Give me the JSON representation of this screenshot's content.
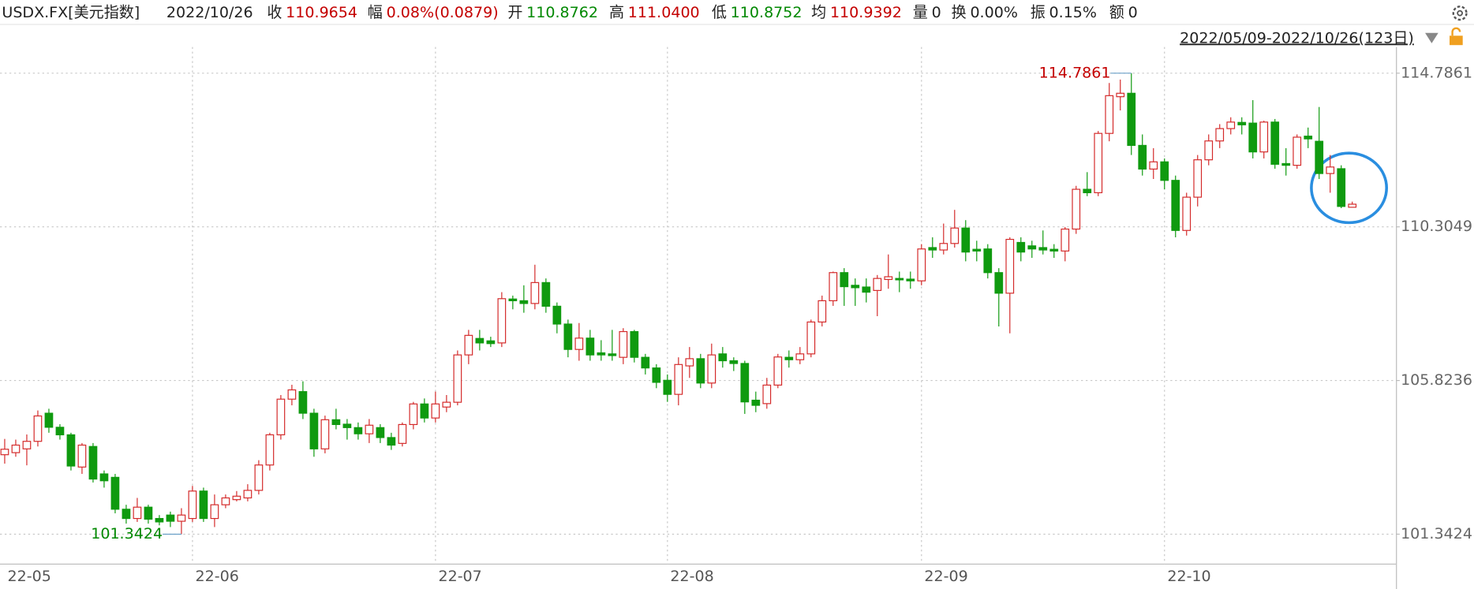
{
  "header": {
    "symbol": "USDX.FX[美元指数]",
    "date": "2022/10/26",
    "items": [
      {
        "label": "收",
        "value": "110.9654",
        "color": "#c40000"
      },
      {
        "label": "幅",
        "value": "0.08%(0.0879)",
        "color": "#c40000"
      },
      {
        "label": "开",
        "value": "110.8762",
        "color": "#008800"
      },
      {
        "label": "高",
        "value": "111.0400",
        "color": "#c40000"
      },
      {
        "label": "低",
        "value": "110.8752",
        "color": "#008800"
      },
      {
        "label": "均",
        "value": "110.9392",
        "color": "#c40000"
      },
      {
        "label": "量",
        "value": "0",
        "color": "#222222"
      },
      {
        "label": "换",
        "value": "0.00%",
        "color": "#222222"
      },
      {
        "label": "振",
        "value": "0.15%",
        "color": "#222222"
      },
      {
        "label": "额",
        "value": "0",
        "color": "#222222"
      }
    ],
    "range": "2022/05/09-2022/10/26(123日)"
  },
  "chart_data": {
    "type": "candlestick",
    "up_color": "#d42a2a",
    "down_color": "#0f9a0f",
    "annotations": {
      "max": "114.7861",
      "min": "101.3424"
    },
    "categories": [
      "22-05",
      null,
      null,
      null,
      null,
      null,
      null,
      null,
      null,
      null,
      null,
      null,
      null,
      null,
      null,
      null,
      null,
      "22-06",
      null,
      null,
      null,
      null,
      null,
      null,
      null,
      null,
      null,
      null,
      null,
      null,
      null,
      null,
      null,
      null,
      null,
      null,
      null,
      null,
      null,
      "22-07",
      null,
      null,
      null,
      null,
      null,
      null,
      null,
      null,
      null,
      null,
      null,
      null,
      null,
      null,
      null,
      null,
      null,
      null,
      null,
      null,
      "22-08",
      null,
      null,
      null,
      null,
      null,
      null,
      null,
      null,
      null,
      null,
      null,
      null,
      null,
      null,
      null,
      null,
      null,
      null,
      null,
      null,
      null,
      null,
      "22-09",
      null,
      null,
      null,
      null,
      null,
      null,
      null,
      null,
      null,
      null,
      null,
      null,
      null,
      null,
      null,
      null,
      null,
      null,
      null,
      null,
      null,
      "22-10",
      null,
      null,
      null,
      null,
      null,
      null,
      null,
      null,
      null,
      null,
      null,
      null,
      null,
      null,
      null,
      null,
      null
    ],
    "open": [
      103.66,
      103.72,
      103.83,
      104.05,
      104.87,
      104.46,
      104.24,
      103.3,
      103.9,
      103.1,
      103.0,
      102.07,
      101.8,
      102.13,
      101.8,
      101.9,
      101.72,
      101.8,
      102.6,
      101.8,
      102.2,
      102.35,
      102.4,
      102.62,
      103.36,
      104.24,
      105.28,
      105.5,
      104.87,
      103.83,
      104.68,
      104.55,
      104.45,
      104.27,
      104.45,
      104.16,
      103.99,
      104.54,
      105.14,
      104.73,
      105.05,
      105.19,
      106.57,
      107.05,
      106.98,
      106.92,
      108.2,
      108.15,
      108.07,
      108.68,
      107.99,
      107.47,
      106.73,
      107.06,
      106.63,
      106.6,
      106.5,
      107.25,
      106.5,
      106.19,
      105.83,
      105.42,
      106.25,
      106.46,
      105.75,
      106.6,
      106.4,
      106.32,
      105.25,
      105.15,
      105.69,
      106.5,
      106.43,
      106.6,
      107.53,
      108.15,
      108.97,
      108.6,
      108.55,
      108.45,
      108.77,
      108.8,
      108.78,
      108.73,
      109.7,
      109.63,
      109.82,
      110.27,
      109.65,
      109.66,
      108.97,
      108.37,
      109.85,
      109.75,
      109.7,
      109.65,
      109.6,
      110.24,
      111.4,
      111.3,
      113.03,
      114.1,
      114.2,
      112.68,
      111.99,
      112.2,
      111.66,
      110.2,
      111.17,
      112.26,
      112.81,
      113.17,
      113.35,
      113.33,
      112.49,
      113.36,
      112.15,
      112.1,
      112.95,
      112.8,
      111.86,
      112.0,
      110.8762
    ],
    "high": [
      104.12,
      104.1,
      104.25,
      104.95,
      105.0,
      104.55,
      104.3,
      104.0,
      104.0,
      103.2,
      103.1,
      102.2,
      102.4,
      102.2,
      101.9,
      102.0,
      102.1,
      102.75,
      102.7,
      102.5,
      102.5,
      102.6,
      102.8,
      103.5,
      104.3,
      105.4,
      105.7,
      105.8,
      105.0,
      104.8,
      105.0,
      104.7,
      104.6,
      104.7,
      104.55,
      104.3,
      104.6,
      105.2,
      105.3,
      105.5,
      105.4,
      106.7,
      107.3,
      107.3,
      107.1,
      108.4,
      108.3,
      108.6,
      109.2,
      108.8,
      108.1,
      107.6,
      107.5,
      107.3,
      107.0,
      107.3,
      107.35,
      107.3,
      106.6,
      106.3,
      106.0,
      106.5,
      106.8,
      106.6,
      106.9,
      106.8,
      106.5,
      106.4,
      105.5,
      105.9,
      106.6,
      106.7,
      106.8,
      107.6,
      108.3,
      109.0,
      109.1,
      108.8,
      108.8,
      108.9,
      109.5,
      109.0,
      109.0,
      109.8,
      110.0,
      110.4,
      110.8,
      110.5,
      109.9,
      109.8,
      109.1,
      110.0,
      110.0,
      109.9,
      110.2,
      109.8,
      110.3,
      111.5,
      111.9,
      113.1,
      114.5,
      114.6,
      114.7861,
      113.0,
      112.6,
      112.3,
      111.8,
      111.3,
      112.4,
      113.0,
      113.3,
      113.5,
      113.5,
      114.0,
      113.4,
      113.45,
      112.6,
      113.0,
      113.2,
      113.8,
      112.4,
      112.1,
      111.04
    ],
    "low": [
      103.4,
      103.6,
      103.35,
      103.9,
      104.3,
      104.1,
      103.2,
      103.1,
      102.85,
      102.7,
      101.95,
      101.65,
      101.7,
      101.65,
      101.6,
      101.55,
      101.3424,
      101.7,
      101.7,
      101.55,
      102.1,
      102.3,
      102.3,
      102.5,
      103.2,
      104.1,
      105.1,
      104.7,
      103.6,
      103.7,
      104.4,
      104.1,
      104.1,
      104.0,
      104.0,
      103.8,
      103.9,
      104.4,
      104.6,
      104.6,
      104.9,
      105.1,
      106.3,
      106.7,
      106.8,
      106.8,
      107.9,
      107.8,
      107.9,
      107.8,
      107.2,
      106.5,
      106.4,
      106.4,
      106.4,
      106.4,
      106.3,
      106.35,
      106.0,
      105.6,
      105.2,
      105.1,
      105.9,
      105.6,
      105.6,
      106.2,
      106.1,
      104.85,
      104.9,
      105.0,
      105.6,
      106.2,
      106.3,
      106.5,
      107.4,
      108.0,
      108.0,
      108.0,
      108.1,
      107.7,
      108.5,
      108.4,
      108.5,
      108.6,
      109.4,
      109.5,
      109.7,
      109.3,
      109.3,
      108.8,
      107.4,
      107.2,
      109.3,
      109.4,
      109.5,
      109.4,
      109.3,
      110.1,
      111.2,
      111.2,
      112.8,
      113.7,
      112.4,
      111.8,
      111.7,
      111.4,
      110.0,
      110.05,
      110.9,
      112.1,
      112.6,
      113.0,
      113.0,
      112.3,
      112.3,
      112.0,
      111.8,
      112.0,
      112.6,
      111.7,
      111.3,
      110.85,
      110.8752
    ],
    "close": [
      103.82,
      103.94,
      104.05,
      104.79,
      104.46,
      104.24,
      103.33,
      103.94,
      102.95,
      102.9,
      102.07,
      101.8,
      102.13,
      101.78,
      101.7,
      101.72,
      101.9,
      102.6,
      101.8,
      102.2,
      102.4,
      102.45,
      102.62,
      103.36,
      104.24,
      105.28,
      105.55,
      104.87,
      103.83,
      104.68,
      104.54,
      104.45,
      104.27,
      104.52,
      104.16,
      103.94,
      104.54,
      105.14,
      104.73,
      105.14,
      105.19,
      106.57,
      107.14,
      106.92,
      106.9,
      108.21,
      108.15,
      108.07,
      108.68,
      107.99,
      107.47,
      106.73,
      107.06,
      106.57,
      106.57,
      106.55,
      107.25,
      106.5,
      106.19,
      105.77,
      105.42,
      106.29,
      106.46,
      105.75,
      106.57,
      106.4,
      106.32,
      105.2,
      105.1,
      105.69,
      106.51,
      106.43,
      106.6,
      107.53,
      108.15,
      108.97,
      108.56,
      108.53,
      108.4,
      108.8,
      108.85,
      108.76,
      108.73,
      109.66,
      109.63,
      109.82,
      110.27,
      109.57,
      109.6,
      108.97,
      108.37,
      109.94,
      109.57,
      109.66,
      109.63,
      109.6,
      110.24,
      111.4,
      111.3,
      113.03,
      114.13,
      114.2,
      112.68,
      111.99,
      112.2,
      111.66,
      110.2,
      111.17,
      112.26,
      112.81,
      113.17,
      113.36,
      113.28,
      112.49,
      113.36,
      112.13,
      112.1,
      112.92,
      112.87,
      111.86,
      112.05,
      110.9,
      110.9654
    ],
    "ylim": [
      100.47,
      115.55
    ],
    "yticks": [
      101.3424,
      105.8236,
      110.3049,
      114.7861
    ],
    "grid": true
  }
}
